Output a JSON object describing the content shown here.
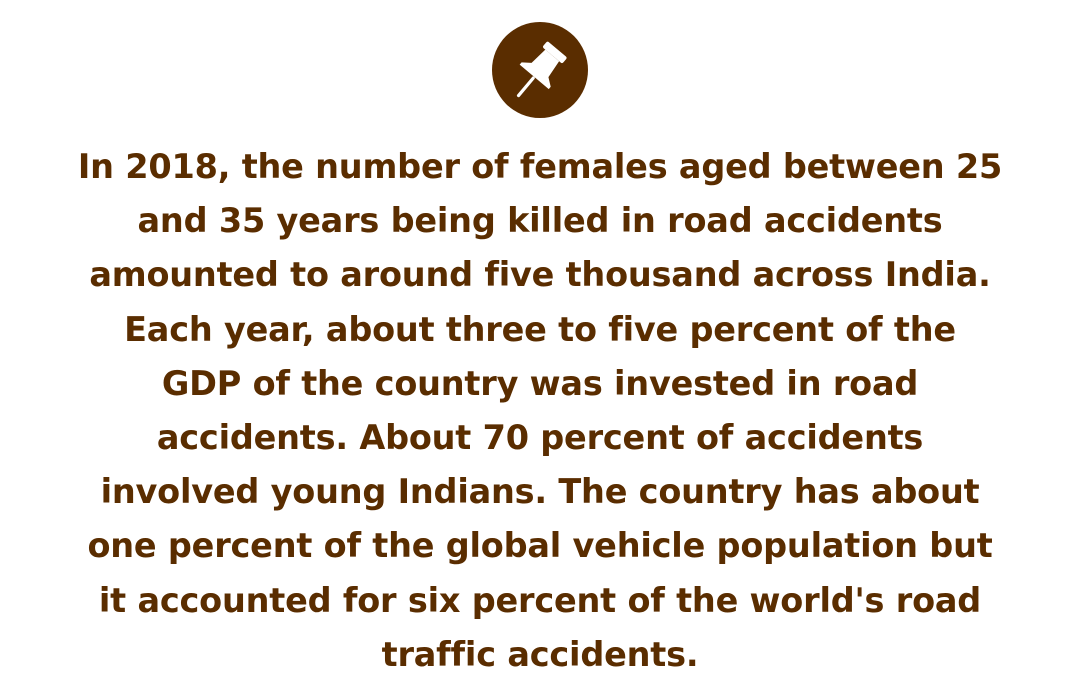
{
  "colors": {
    "accent": "#5a2d00",
    "text": "#5a2d00",
    "background": "#ffffff"
  },
  "badge": {
    "icon": "pushpin-icon"
  },
  "fact": {
    "lines": [
      "In 2018, the number of females aged between 25",
      "and 35 years being killed in road accidents",
      "amounted to around five thousand across India.",
      "Each year, about three to five percent of the",
      "GDP of the country was invested in road",
      "accidents. About 70 percent of accidents",
      "involved young Indians. The country has about",
      "one percent of the global vehicle population but",
      "it accounted for six percent of the world's road",
      "traffic accidents."
    ]
  }
}
